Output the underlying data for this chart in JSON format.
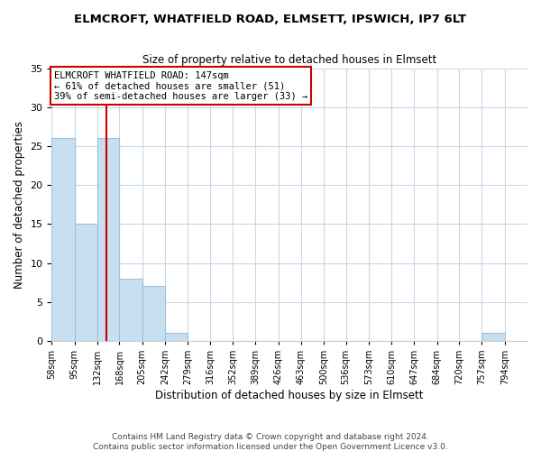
{
  "title": "ELMCROFT, WHATFIELD ROAD, ELMSETT, IPSWICH, IP7 6LT",
  "subtitle": "Size of property relative to detached houses in Elmsett",
  "xlabel": "Distribution of detached houses by size in Elmsett",
  "ylabel": "Number of detached properties",
  "footnote1": "Contains HM Land Registry data © Crown copyright and database right 2024.",
  "footnote2": "Contains public sector information licensed under the Open Government Licence v3.0.",
  "bin_edges": [
    58,
    95,
    132,
    168,
    205,
    242,
    279,
    316,
    352,
    389,
    426,
    463,
    500,
    536,
    573,
    610,
    647,
    684,
    720,
    757,
    794
  ],
  "bin_labels": [
    "58sqm",
    "95sqm",
    "132sqm",
    "168sqm",
    "205sqm",
    "242sqm",
    "279sqm",
    "316sqm",
    "352sqm",
    "389sqm",
    "426sqm",
    "463sqm",
    "500sqm",
    "536sqm",
    "573sqm",
    "610sqm",
    "647sqm",
    "684sqm",
    "720sqm",
    "757sqm",
    "794sqm"
  ],
  "counts": [
    26,
    15,
    26,
    8,
    7,
    1,
    0,
    0,
    0,
    0,
    0,
    0,
    0,
    0,
    0,
    0,
    0,
    0,
    0,
    1
  ],
  "bar_color": "#c8dff0",
  "bar_edge_color": "#a0c0df",
  "property_line_x": 147,
  "annotation_title": "ELMCROFT WHATFIELD ROAD: 147sqm",
  "annotation_line1": "← 61% of detached houses are smaller (51)",
  "annotation_line2": "39% of semi-detached houses are larger (33) →",
  "annotation_box_facecolor": "#ffffff",
  "annotation_box_edgecolor": "#cc0000",
  "property_line_color": "#cc0000",
  "ylim": [
    0,
    35
  ],
  "yticks": [
    0,
    5,
    10,
    15,
    20,
    25,
    30,
    35
  ],
  "background_color": "#ffffff",
  "grid_color": "#c8d8e8",
  "title_fontsize": 9.5,
  "subtitle_fontsize": 8.5,
  "axis_label_fontsize": 8.5,
  "tick_fontsize": 8,
  "xtick_fontsize": 7,
  "footnote_fontsize": 6.5
}
